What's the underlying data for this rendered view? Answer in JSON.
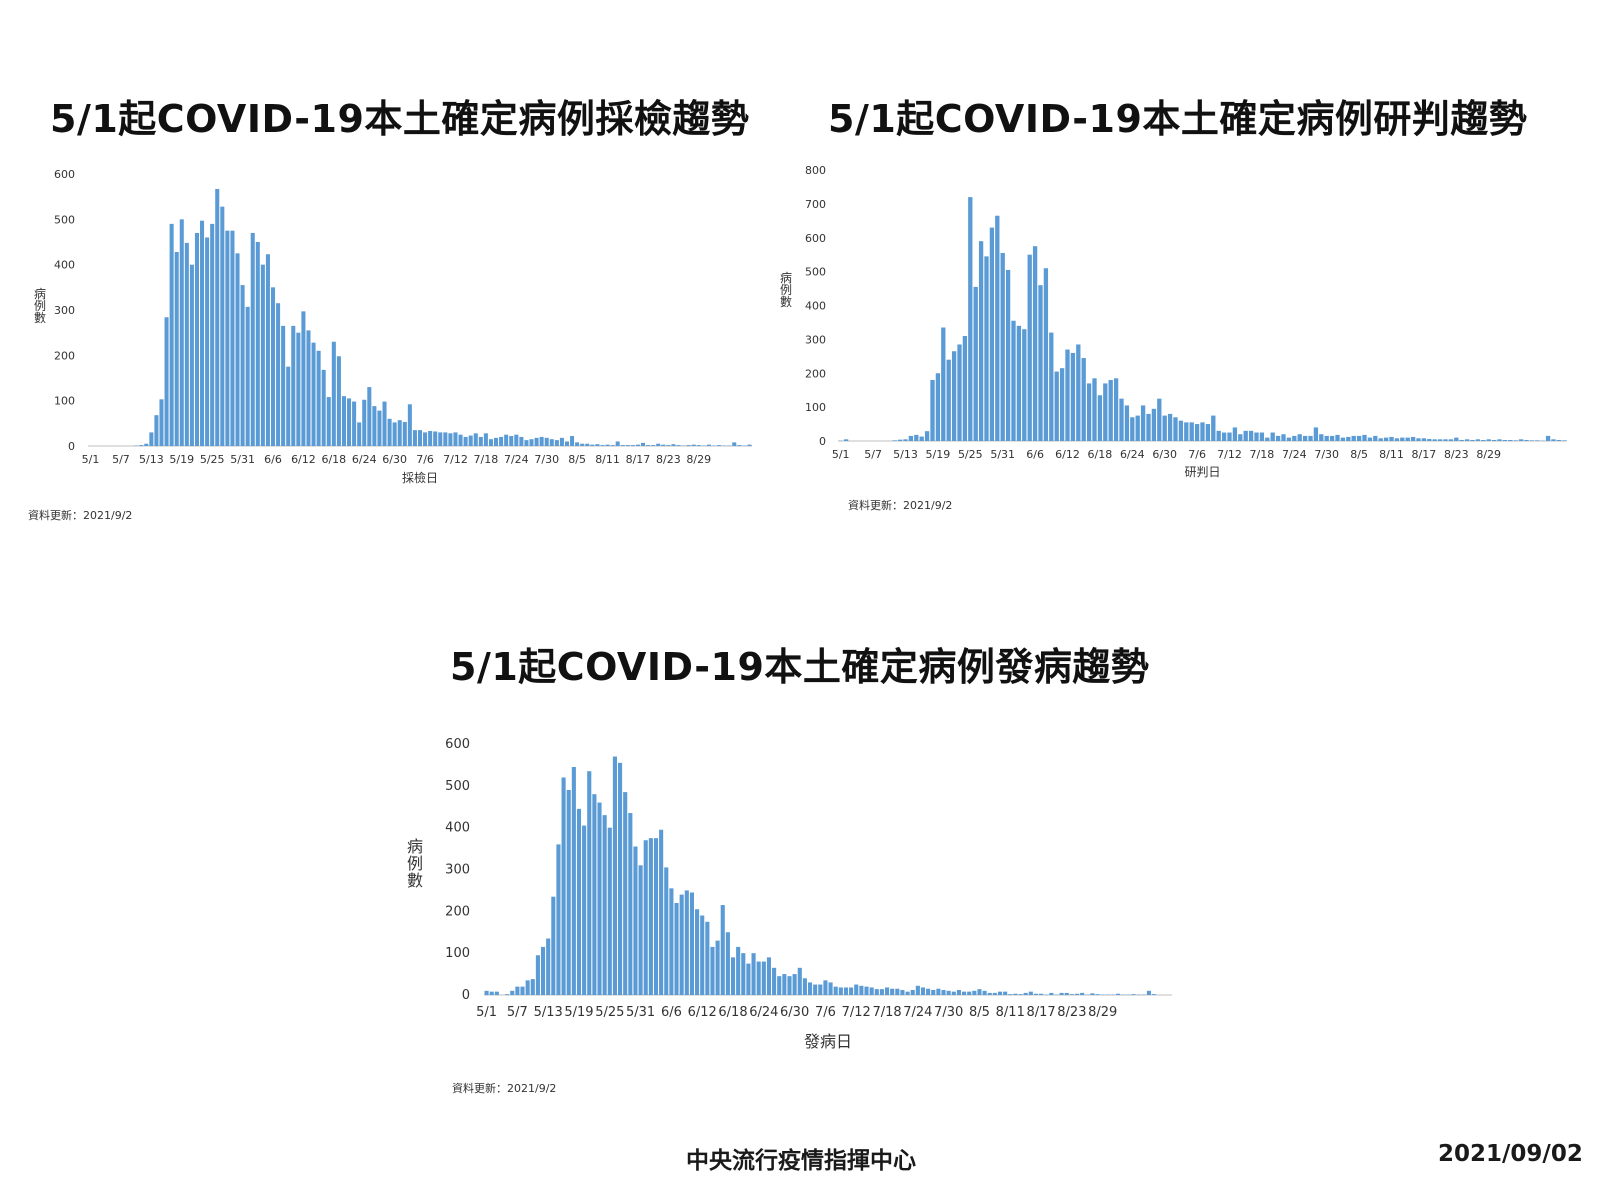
{
  "colors": {
    "bar": "#5B9BD5",
    "axis": "#bfbfbf",
    "text": "#333333"
  },
  "chart_data": [
    {
      "type": "bar",
      "title": "5/1起COVID-19本土確定病例採檢趨勢",
      "xlabel": "採檢日",
      "ylabel": "病例數",
      "ylim": [
        0,
        600
      ],
      "yticks": [
        0,
        100,
        200,
        300,
        400,
        500,
        600
      ],
      "x_tick_labels": [
        "5/1",
        "5/7",
        "5/13",
        "5/19",
        "5/25",
        "5/31",
        "6/6",
        "6/12",
        "6/18",
        "6/24",
        "6/30",
        "7/6",
        "7/12",
        "7/18",
        "7/24",
        "7/30",
        "8/5",
        "8/11",
        "8/17",
        "8/23",
        "8/29"
      ],
      "x_start": "5/1",
      "values": [
        0,
        0,
        0,
        0,
        0,
        0,
        0,
        0,
        0,
        1,
        2,
        5,
        30,
        68,
        103,
        284,
        490,
        428,
        500,
        448,
        400,
        470,
        497,
        460,
        490,
        567,
        528,
        475,
        475,
        425,
        355,
        307,
        470,
        450,
        400,
        423,
        350,
        315,
        265,
        175,
        265,
        250,
        297,
        255,
        228,
        210,
        168,
        108,
        230,
        198,
        110,
        105,
        98,
        52,
        102,
        130,
        88,
        78,
        98,
        60,
        52,
        57,
        53,
        92,
        35,
        35,
        30,
        33,
        32,
        30,
        30,
        28,
        30,
        25,
        20,
        23,
        28,
        20,
        28,
        15,
        18,
        20,
        25,
        22,
        25,
        20,
        13,
        15,
        18,
        20,
        18,
        15,
        13,
        18,
        10,
        22,
        8,
        5,
        5,
        3,
        4,
        2,
        3,
        2,
        10,
        2,
        2,
        2,
        3,
        7,
        2,
        2,
        5,
        3,
        2,
        4,
        2,
        1,
        2,
        3,
        2,
        1,
        3,
        1,
        2,
        1,
        1,
        8,
        2,
        1,
        3
      ],
      "update_label": "資料更新：2021/9/2"
    },
    {
      "type": "bar",
      "title": "5/1起COVID-19本土確定病例研判趨勢",
      "xlabel": "研判日",
      "ylabel": "病例數",
      "ylim": [
        0,
        800
      ],
      "yticks": [
        0,
        100,
        200,
        300,
        400,
        500,
        600,
        700,
        800
      ],
      "x_tick_labels": [
        "5/1",
        "5/7",
        "5/13",
        "5/19",
        "5/25",
        "5/31",
        "6/6",
        "6/12",
        "6/18",
        "6/24",
        "6/30",
        "7/6",
        "7/12",
        "7/18",
        "7/24",
        "7/30",
        "8/5",
        "8/11",
        "8/17",
        "8/23",
        "8/29"
      ],
      "x_start": "5/1",
      "values": [
        1,
        5,
        0,
        0,
        0,
        0,
        0,
        0,
        0,
        0,
        2,
        4,
        5,
        15,
        18,
        13,
        29,
        180,
        200,
        335,
        240,
        265,
        285,
        310,
        720,
        455,
        590,
        545,
        630,
        665,
        555,
        505,
        355,
        340,
        330,
        550,
        575,
        460,
        510,
        320,
        205,
        215,
        270,
        260,
        285,
        245,
        170,
        185,
        135,
        170,
        180,
        185,
        125,
        105,
        70,
        75,
        105,
        80,
        95,
        125,
        75,
        80,
        70,
        60,
        55,
        55,
        50,
        55,
        50,
        75,
        30,
        25,
        25,
        40,
        20,
        30,
        30,
        25,
        25,
        10,
        25,
        15,
        20,
        10,
        15,
        20,
        15,
        15,
        40,
        20,
        15,
        15,
        18,
        10,
        12,
        15,
        15,
        18,
        10,
        15,
        8,
        10,
        12,
        8,
        10,
        10,
        12,
        8,
        8,
        6,
        5,
        5,
        5,
        5,
        10,
        3,
        5,
        3,
        5,
        3,
        5,
        3,
        5,
        3,
        3,
        2,
        5,
        3,
        2,
        2,
        1,
        15,
        5,
        3,
        2
      ],
      "update_label": "資料更新：2021/9/2"
    },
    {
      "type": "bar",
      "title": "5/1起COVID-19本土確定病例發病趨勢",
      "xlabel": "發病日",
      "ylabel": "病例數",
      "ylim": [
        0,
        600
      ],
      "yticks": [
        0,
        100,
        200,
        300,
        400,
        500,
        600
      ],
      "x_tick_labels": [
        "5/1",
        "5/7",
        "5/13",
        "5/19",
        "5/25",
        "5/31",
        "6/6",
        "6/12",
        "6/18",
        "6/24",
        "6/30",
        "7/6",
        "7/12",
        "7/18",
        "7/24",
        "7/30",
        "8/5",
        "8/11",
        "8/17",
        "8/23",
        "8/29"
      ],
      "x_start": "5/1",
      "values": [
        10,
        8,
        8,
        0,
        2,
        10,
        20,
        20,
        35,
        38,
        95,
        115,
        135,
        235,
        360,
        520,
        490,
        545,
        445,
        405,
        535,
        480,
        460,
        430,
        400,
        570,
        555,
        485,
        435,
        355,
        310,
        370,
        375,
        375,
        395,
        305,
        255,
        220,
        240,
        250,
        245,
        205,
        190,
        175,
        115,
        130,
        215,
        150,
        90,
        115,
        100,
        75,
        100,
        80,
        80,
        90,
        65,
        45,
        50,
        45,
        50,
        65,
        40,
        30,
        25,
        25,
        35,
        30,
        20,
        18,
        18,
        18,
        25,
        22,
        20,
        18,
        14,
        14,
        18,
        15,
        15,
        12,
        8,
        12,
        22,
        18,
        15,
        12,
        15,
        12,
        10,
        8,
        12,
        8,
        8,
        10,
        14,
        10,
        5,
        5,
        8,
        8,
        2,
        3,
        2,
        5,
        8,
        3,
        3,
        1,
        5,
        1,
        5,
        5,
        2,
        3,
        5,
        1,
        4,
        2,
        1,
        1,
        1,
        3,
        1,
        1,
        2,
        1,
        1,
        10,
        2,
        0,
        0,
        0
      ],
      "update_label": "資料更新：2021/9/2"
    }
  ],
  "footer": {
    "org": "中央流行疫情指揮中心",
    "date": "2021/09/02"
  }
}
